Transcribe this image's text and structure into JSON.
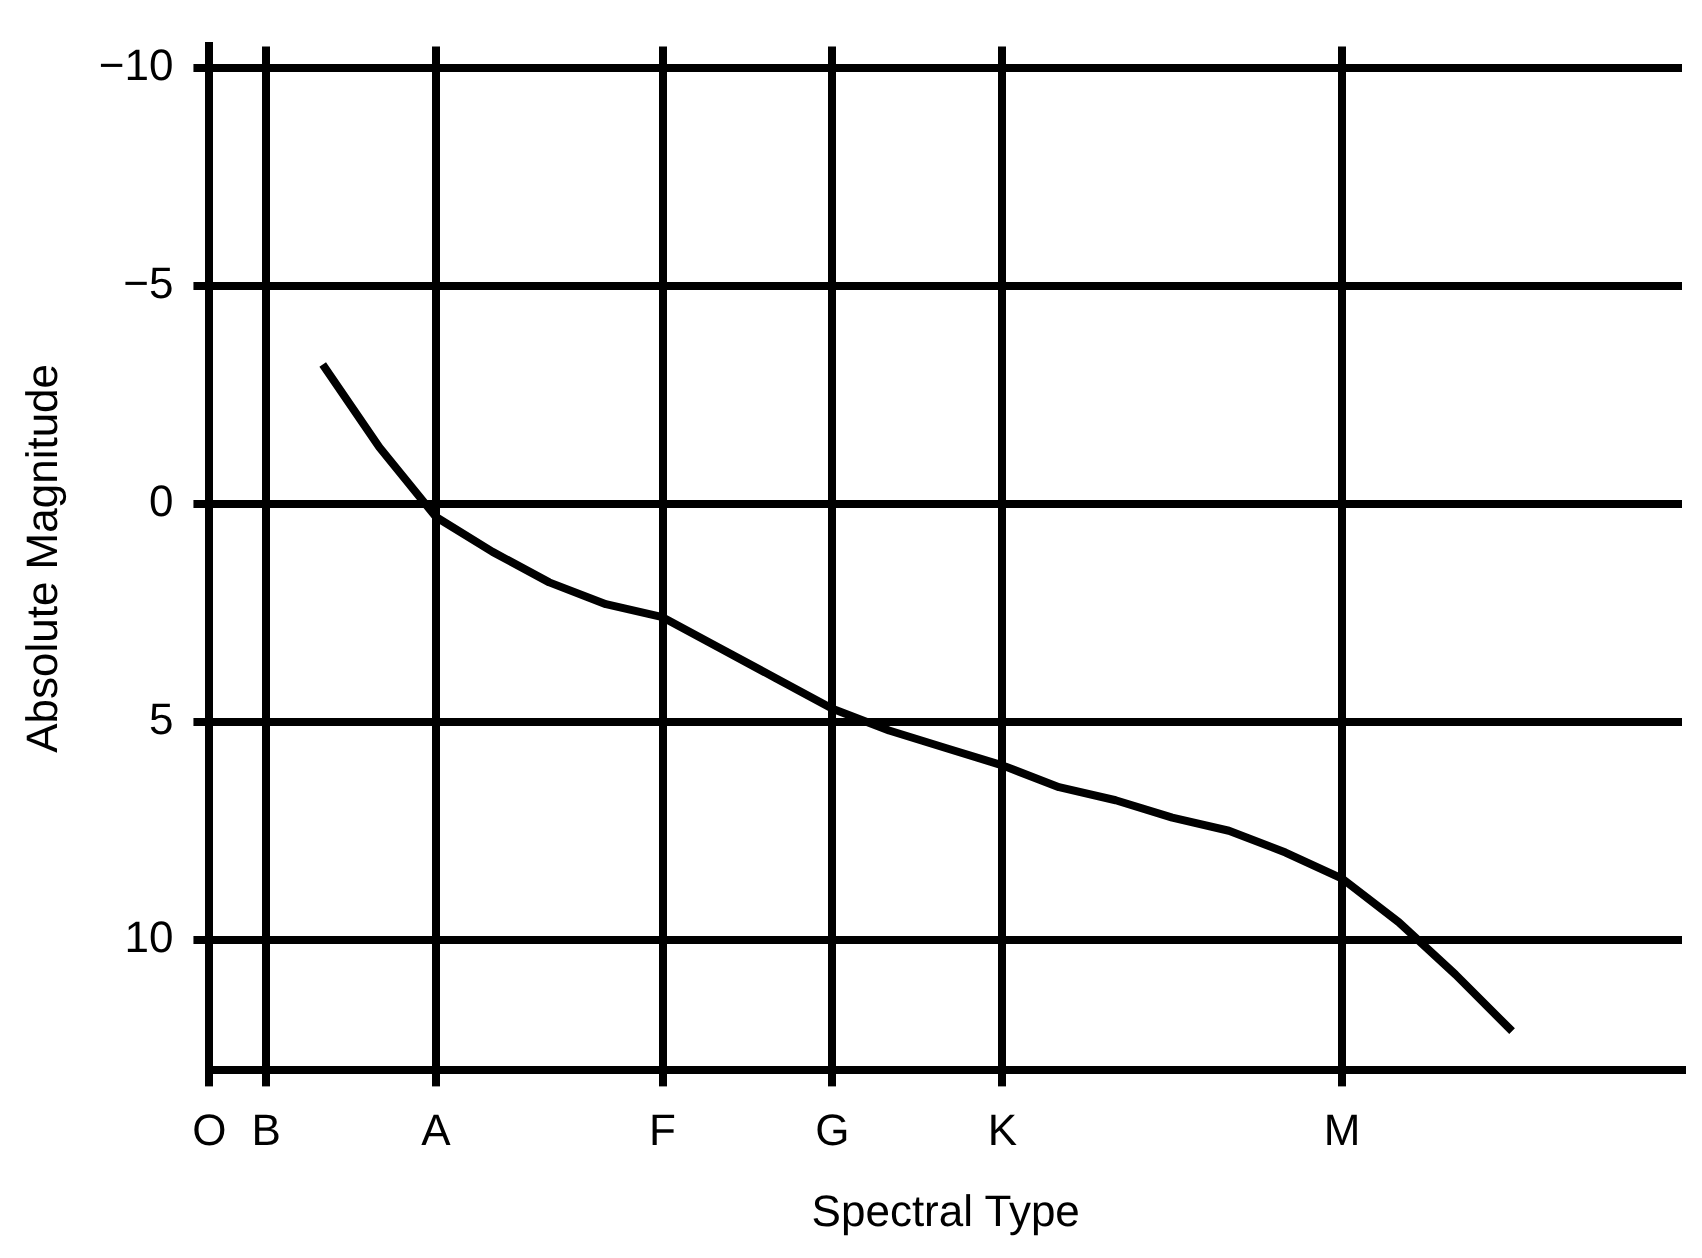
{
  "chart_data": {
    "type": "line",
    "xlabel": "Spectral Type",
    "ylabel": "Absolute Magnitude",
    "categories": [
      "O",
      "B",
      null,
      null,
      "A",
      null,
      null,
      null,
      "F",
      null,
      null,
      "G",
      null,
      null,
      "K",
      null,
      null,
      null,
      null,
      null,
      "M",
      null,
      null,
      null,
      null,
      null,
      null
    ],
    "values": [
      null,
      null,
      -3.2,
      -1.3,
      0.3,
      1.1,
      1.8,
      2.3,
      2.6,
      3.3,
      4.0,
      4.7,
      5.2,
      5.6,
      6.0,
      6.5,
      6.8,
      7.2,
      7.5,
      8.0,
      8.6,
      9.6,
      10.8,
      12.1,
      null,
      null,
      null
    ],
    "color": "#000000",
    "ylim": [
      13,
      -10.5
    ],
    "yticks": [
      {
        "value": -10,
        "label": "−10"
      },
      {
        "value": -5,
        "label": "−5"
      },
      0,
      5,
      10
    ],
    "grid": true,
    "marker": "none",
    "line_style": "solid",
    "legend": false
  }
}
